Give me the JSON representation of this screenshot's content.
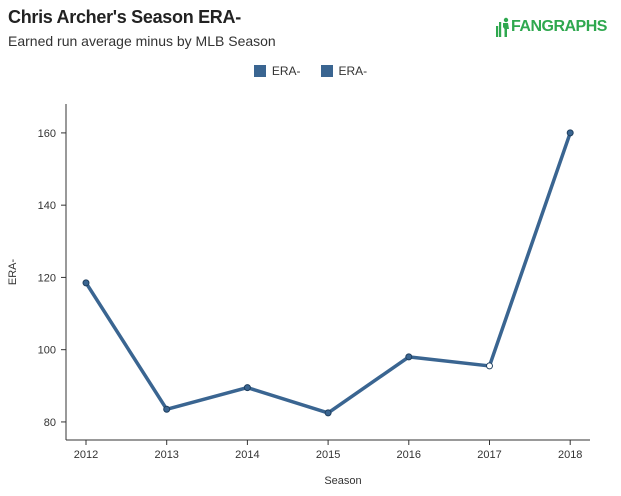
{
  "header": {
    "title": "Chris Archer's Season ERA-",
    "subtitle": "Earned run average minus by MLB Season",
    "logo_text": "FANGRAPHS"
  },
  "colors": {
    "series": "#3a6591",
    "point_hollow": "#ffffff",
    "axis": "#333333",
    "logo": "#2fa84f"
  },
  "chart_data": {
    "type": "line",
    "title": "Chris Archer's Season ERA-",
    "subtitle": "Earned run average minus by MLB Season",
    "xlabel": "Season",
    "ylabel": "ERA-",
    "x": [
      "2012",
      "2013",
      "2014",
      "2015",
      "2016",
      "2017",
      "2018"
    ],
    "ylim": [
      75,
      168
    ],
    "yticks": [
      80,
      100,
      120,
      140,
      160
    ],
    "grid": false,
    "legend_position": "top-center",
    "legend": [
      "ERA-",
      "ERA-"
    ],
    "series": [
      {
        "name": "ERA-",
        "values": [
          118.5,
          83.5,
          89.5,
          82.5,
          98,
          95.5,
          160
        ],
        "hollow_points": [
          5
        ]
      }
    ]
  }
}
